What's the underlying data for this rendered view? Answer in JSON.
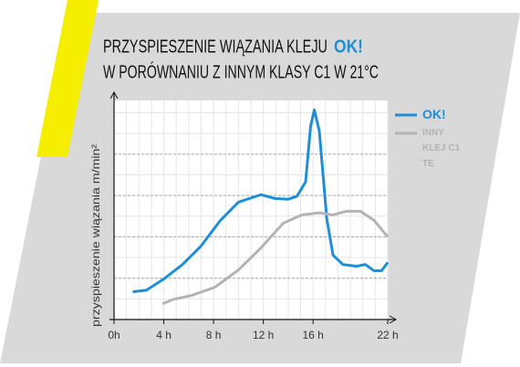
{
  "chart_data": {
    "type": "line",
    "title": "PRZYSPIESZENIE WIĄZANIA KLEJU",
    "title_highlight": "OK!",
    "subtitle": "W PORÓWNANIU Z INNYM KLASY C1 W 21°C",
    "y_label": "przyspieszenie wiązania m/min²",
    "xlim": [
      0,
      22
    ],
    "xticks": [
      {
        "value": 0,
        "label": "0h"
      },
      {
        "value": 4,
        "label": "4 h"
      },
      {
        "value": 8,
        "label": "8 h"
      },
      {
        "value": 12,
        "label": "12 h"
      },
      {
        "value": 16,
        "label": "16 h"
      },
      {
        "value": 22,
        "label": "22 h"
      }
    ],
    "ylim": [
      0,
      5.3
    ],
    "yticks": [
      1,
      2,
      3,
      4
    ],
    "grid": true,
    "series": [
      {
        "name": "OK!",
        "color": "#1e8fd6",
        "x": [
          1.5,
          2.6,
          4,
          5.5,
          7,
          8.5,
          10,
          11.8,
          12.9,
          14,
          14.7,
          15.4,
          15.8,
          16.1,
          16.5,
          17.1,
          17.6,
          18.4,
          19.5,
          20.2,
          20.9,
          21.5,
          22
        ],
        "values": [
          0.67,
          0.71,
          0.98,
          1.33,
          1.78,
          2.38,
          2.84,
          3.02,
          2.93,
          2.91,
          2.98,
          3.33,
          4.67,
          5.07,
          4.56,
          2.44,
          1.56,
          1.33,
          1.29,
          1.33,
          1.18,
          1.18,
          1.38
        ]
      },
      {
        "name": "INNY KLEJ C1 TE",
        "color": "#b3b3b3",
        "x": [
          3.9,
          4.8,
          6.2,
          8.1,
          10,
          11.8,
          13.6,
          15.1,
          16.5,
          17.6,
          18.7,
          19.8,
          20.9,
          22
        ],
        "values": [
          0.38,
          0.49,
          0.58,
          0.78,
          1.2,
          1.73,
          2.33,
          2.53,
          2.58,
          2.53,
          2.62,
          2.62,
          2.4,
          2.0
        ]
      }
    ]
  }
}
